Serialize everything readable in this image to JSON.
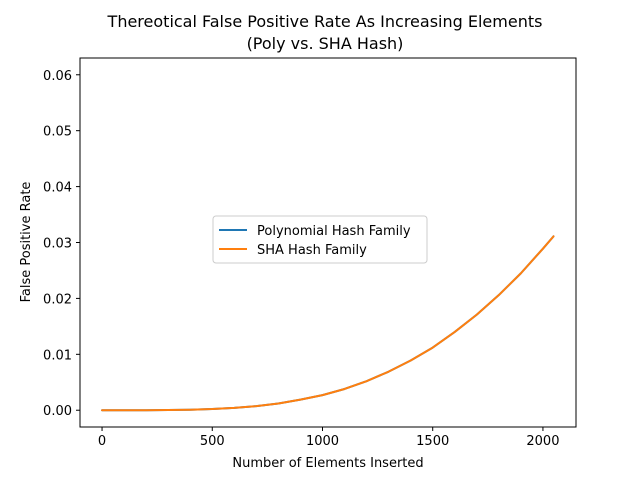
{
  "chart_data": {
    "type": "line",
    "title_line1": "Thereotical False Positive Rate As Increasing Elements",
    "title_line2": "(Poly vs. SHA Hash)",
    "xlabel": "Number of Elements Inserted",
    "ylabel": "False Positive Rate",
    "xlim": [
      -100,
      2150
    ],
    "ylim": [
      -0.003,
      0.063
    ],
    "xticks": [
      0,
      500,
      1000,
      1500,
      2000
    ],
    "xtick_labels": [
      "0",
      "500",
      "1000",
      "1500",
      "2000"
    ],
    "yticks": [
      0.0,
      0.01,
      0.02,
      0.03,
      0.04,
      0.05,
      0.06
    ],
    "ytick_labels": [
      "0.00",
      "0.01",
      "0.02",
      "0.03",
      "0.04",
      "0.05",
      "0.06"
    ],
    "grid": false,
    "legend_position": "center-left",
    "x": [
      0,
      100,
      200,
      300,
      400,
      500,
      600,
      700,
      800,
      900,
      1000,
      1100,
      1200,
      1300,
      1400,
      1500,
      1600,
      1700,
      1800,
      1900,
      2000,
      2048
    ],
    "series": [
      {
        "name": "Polynomial Hash Family",
        "color": "#1f77b4",
        "values": [
          0.0,
          5e-07,
          7e-06,
          3e-05,
          9e-05,
          0.00021,
          0.00042,
          0.00074,
          0.0012,
          0.0019,
          0.0027,
          0.0038,
          0.0052,
          0.0069,
          0.0089,
          0.0112,
          0.014,
          0.0171,
          0.0206,
          0.0245,
          0.0289,
          0.0311
        ]
      },
      {
        "name": "SHA Hash Family",
        "color": "#ff7f0e",
        "values": [
          0.0,
          5e-07,
          7e-06,
          3e-05,
          9e-05,
          0.00021,
          0.00042,
          0.00074,
          0.0012,
          0.0019,
          0.0027,
          0.0038,
          0.0052,
          0.0069,
          0.0089,
          0.0112,
          0.014,
          0.0171,
          0.0206,
          0.0245,
          0.0289,
          0.0311
        ]
      }
    ]
  }
}
